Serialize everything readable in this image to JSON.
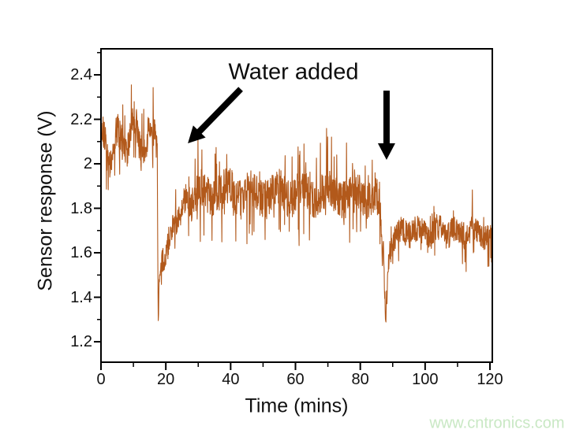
{
  "figure": {
    "background": "#ffffff"
  },
  "watermark": {
    "text": "www.cntronics.com",
    "color": "#c9e8c4"
  },
  "chart_data": {
    "type": "line",
    "title": "",
    "xlabel": "Time (mins)",
    "ylabel": "Sensor response (V)",
    "annotation": {
      "text": "Water added"
    },
    "line_color": "#b2591b",
    "axis_color": "#000000",
    "grid": "off",
    "legend_position": "none",
    "xlim": [
      0,
      120.73
    ],
    "ylim": [
      1.108,
      2.517
    ],
    "x_ticks": [
      {
        "value": 0,
        "label": "0"
      },
      {
        "value": 20,
        "label": "20"
      },
      {
        "value": 40,
        "label": "40"
      },
      {
        "value": 60,
        "label": "60"
      },
      {
        "value": 80,
        "label": "80"
      },
      {
        "value": 100,
        "label": "100"
      },
      {
        "value": 120,
        "label": "120"
      }
    ],
    "y_ticks": [
      {
        "value": 1.2,
        "label": "1.2"
      },
      {
        "value": 1.4,
        "label": "1.4"
      },
      {
        "value": 1.6,
        "label": "1.6"
      },
      {
        "value": 1.8,
        "label": "1.8"
      },
      {
        "value": 2.0,
        "label": "2"
      },
      {
        "value": 2.2,
        "label": "2.2"
      },
      {
        "value": 2.4,
        "label": "2.4"
      }
    ],
    "x_minor_ticks": [
      10,
      30,
      50,
      70,
      90,
      110
    ],
    "y_minor_ticks": [
      1.3,
      1.5,
      1.7,
      1.9,
      2.1,
      2.3,
      2.5
    ],
    "arrows": [
      {
        "name": "water-added-arrow-diagonal",
        "from_t": 43.1,
        "from_v": 2.336,
        "to_t": 26.8,
        "to_v": 2.092
      },
      {
        "name": "water-added-arrow-vertical",
        "from_t": 88.1,
        "from_v": 2.329,
        "to_t": 88.1,
        "to_v": 2.018
      }
    ],
    "events": [
      {
        "label": "first water addition dip",
        "t": 17.7,
        "min_v": 1.24
      },
      {
        "label": "second water addition dip",
        "t": 87.9,
        "min_v": 1.3
      }
    ],
    "series_model": {
      "seed": 20,
      "step_mins": 0.08,
      "clamp": [
        1.225,
        2.355
      ],
      "base_anchors": [
        [
          0,
          2.09
        ],
        [
          2.5,
          2.04
        ],
        [
          4,
          2.14
        ],
        [
          6,
          2.06
        ],
        [
          8,
          2.12
        ],
        [
          10,
          2.16
        ],
        [
          12,
          2.08
        ],
        [
          14,
          2.12
        ],
        [
          16,
          2.1
        ],
        [
          17.35,
          2.12
        ],
        [
          17.5,
          1.6
        ],
        [
          17.6,
          1.38
        ],
        [
          17.7,
          1.24
        ],
        [
          17.82,
          1.4
        ],
        [
          17.95,
          1.5
        ],
        [
          18.1,
          1.46
        ],
        [
          18.4,
          1.54
        ],
        [
          19.5,
          1.59
        ],
        [
          21,
          1.66
        ],
        [
          23,
          1.74
        ],
        [
          25,
          1.8
        ],
        [
          27,
          1.84
        ],
        [
          30,
          1.86
        ],
        [
          35,
          1.87
        ],
        [
          40,
          1.88
        ],
        [
          45,
          1.87
        ],
        [
          50,
          1.86
        ],
        [
          55,
          1.87
        ],
        [
          60,
          1.87
        ],
        [
          65,
          1.86
        ],
        [
          70,
          1.87
        ],
        [
          75,
          1.86
        ],
        [
          80,
          1.87
        ],
        [
          84,
          1.85
        ],
        [
          86.2,
          1.8
        ],
        [
          86.5,
          1.7
        ],
        [
          86.8,
          1.58
        ],
        [
          87.1,
          1.62
        ],
        [
          87.4,
          1.5
        ],
        [
          87.65,
          1.36
        ],
        [
          87.9,
          1.3
        ],
        [
          88.05,
          1.44
        ],
        [
          88.2,
          1.35
        ],
        [
          88.5,
          1.52
        ],
        [
          89.1,
          1.61
        ],
        [
          90,
          1.66
        ],
        [
          92,
          1.68
        ],
        [
          95,
          1.7
        ],
        [
          100,
          1.69
        ],
        [
          105,
          1.7
        ],
        [
          110,
          1.69
        ],
        [
          115,
          1.7
        ],
        [
          118,
          1.68
        ],
        [
          120.8,
          1.67
        ]
      ],
      "noise_zones": [
        {
          "t0": 0,
          "t1": 17.35,
          "amp": 0.075,
          "spike_p": 0.1,
          "spike_amp": 0.13,
          "wander_amp": 0.065,
          "wander_freq": 1.25,
          "wander_phase": 1.0
        },
        {
          "t0": 17.35,
          "t1": 18.4,
          "amp": 0.035,
          "spike_p": 0,
          "spike_amp": 0,
          "wander_amp": 0,
          "wander_freq": 0,
          "wander_phase": 0
        },
        {
          "t0": 18.4,
          "t1": 27,
          "amp": 0.06,
          "spike_p": 0.05,
          "spike_amp": 0.08,
          "wander_amp": 0.025,
          "wander_freq": 1.5,
          "wander_phase": 0
        },
        {
          "t0": 27,
          "t1": 86.2,
          "amp": 0.085,
          "spike_p": 0.09,
          "spike_amp": 0.15,
          "wander_amp": 0.028,
          "wander_freq": 0.8,
          "wander_phase": 2.0
        },
        {
          "t0": 86.2,
          "t1": 89.1,
          "amp": 0.04,
          "spike_p": 0,
          "spike_amp": 0,
          "wander_amp": 0,
          "wander_freq": 0,
          "wander_phase": 0
        },
        {
          "t0": 89.1,
          "t1": 120.9,
          "amp": 0.06,
          "spike_p": 0.07,
          "spike_amp": 0.1,
          "wander_amp": 0.02,
          "wander_freq": 1.1,
          "wander_phase": 0.5
        }
      ]
    }
  }
}
